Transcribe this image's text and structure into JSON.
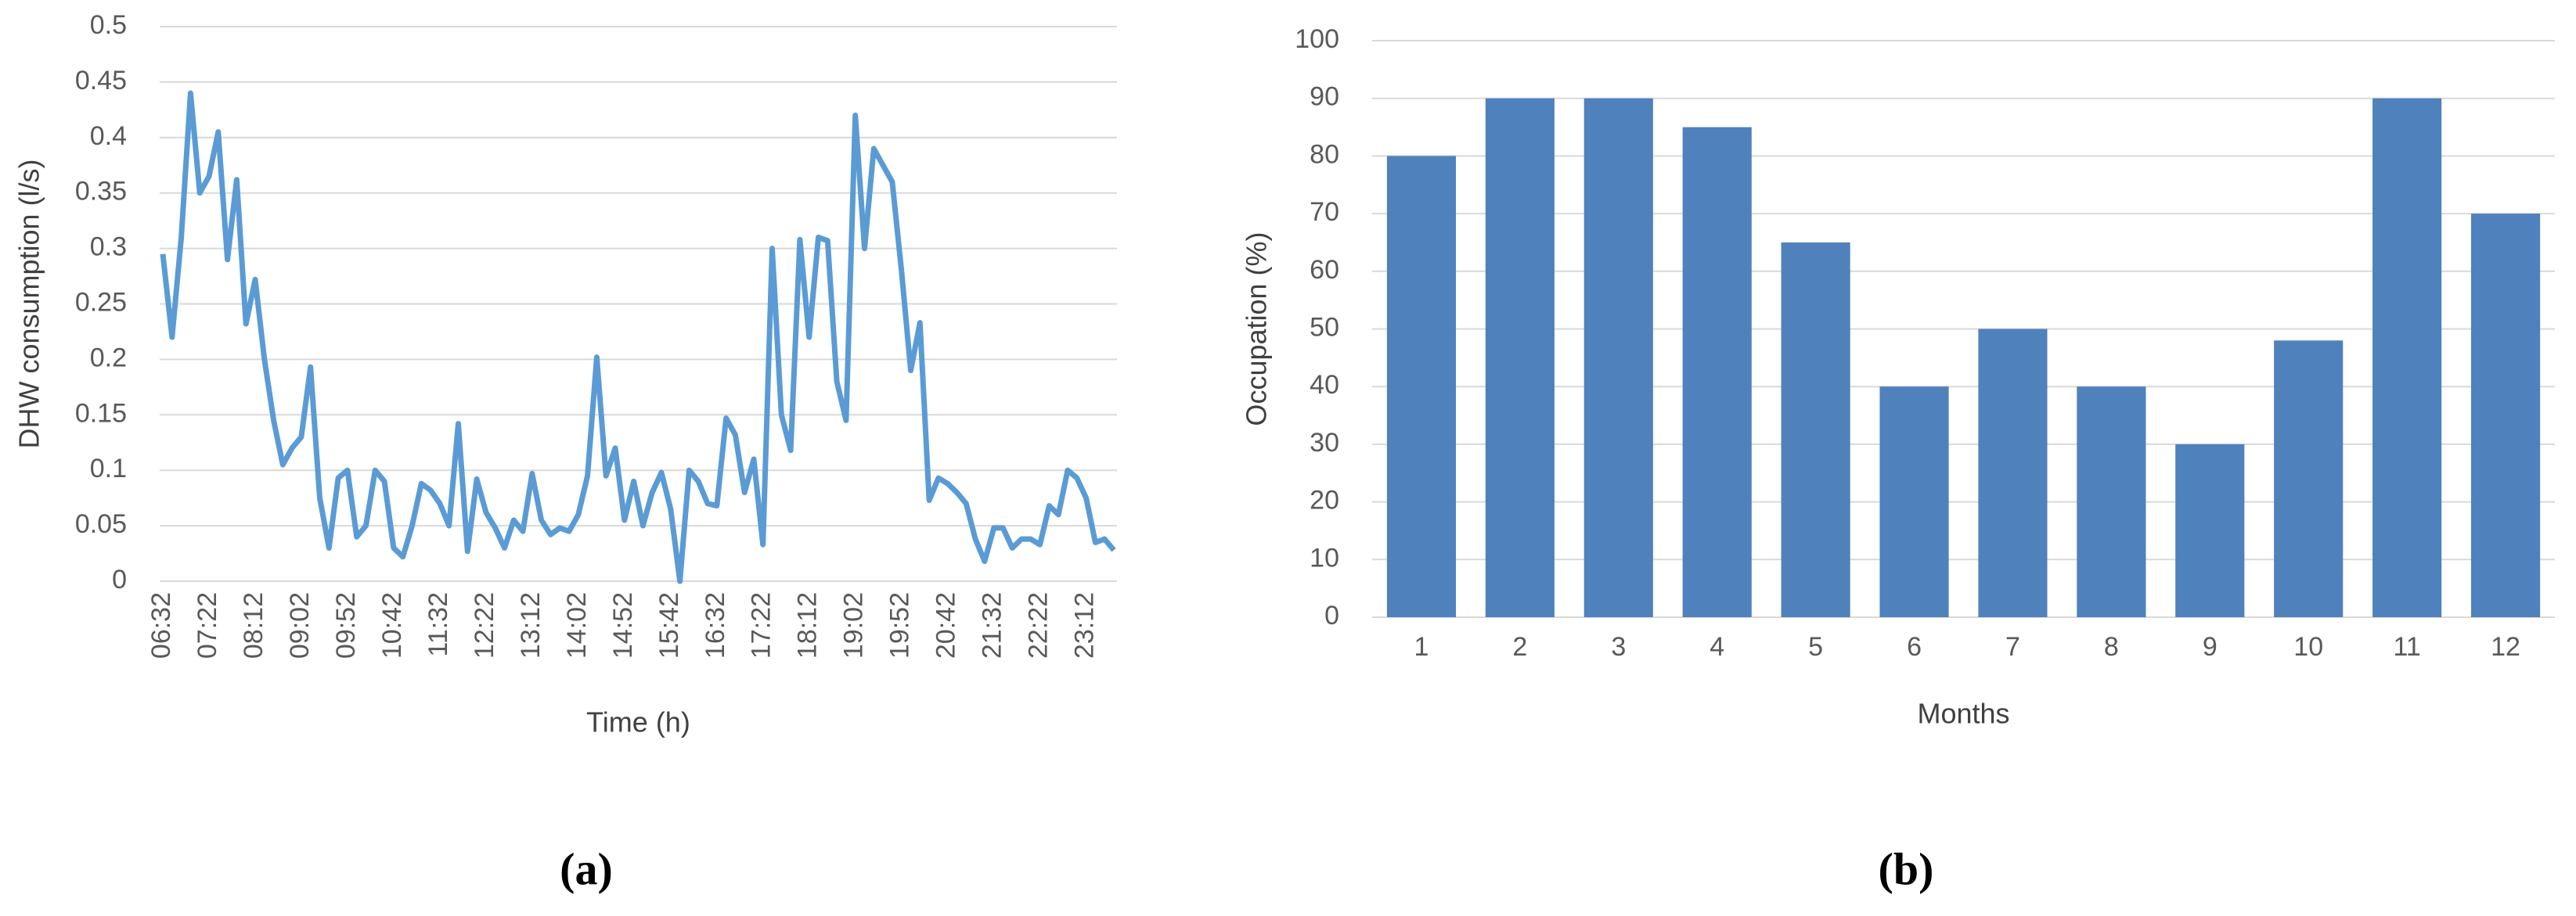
{
  "chart_data": [
    {
      "type": "line",
      "caption": "(a)",
      "xlabel": "Time (h)",
      "ylabel": "DHW consumption (l/s)",
      "categories": [
        "06:32",
        null,
        null,
        null,
        null,
        "07:22",
        null,
        null,
        null,
        null,
        "08:12",
        null,
        null,
        null,
        null,
        "09:02",
        null,
        null,
        null,
        null,
        "09:52",
        null,
        null,
        null,
        null,
        "10:42",
        null,
        null,
        null,
        null,
        "11:32",
        null,
        null,
        null,
        null,
        "12:22",
        null,
        null,
        null,
        null,
        "13:12",
        null,
        null,
        null,
        null,
        "14:02",
        null,
        null,
        null,
        null,
        "14:52",
        null,
        null,
        null,
        null,
        "15:42",
        null,
        null,
        null,
        null,
        "16:32",
        null,
        null,
        null,
        null,
        "17:22",
        null,
        null,
        null,
        null,
        "18:12",
        null,
        null,
        null,
        null,
        "19:02",
        null,
        null,
        null,
        null,
        "19:52",
        null,
        null,
        null,
        null,
        "20:42",
        null,
        null,
        null,
        null,
        "21:32",
        null,
        null,
        null,
        null,
        "22:22",
        null,
        null,
        null,
        null,
        "23:12",
        null,
        null,
        null
      ],
      "values": [
        0.295,
        0.22,
        0.31,
        0.44,
        0.35,
        0.365,
        0.405,
        0.29,
        0.362,
        0.232,
        0.272,
        0.2,
        0.145,
        0.105,
        0.12,
        0.13,
        0.193,
        0.075,
        0.03,
        0.093,
        0.1,
        0.04,
        0.05,
        0.1,
        0.09,
        0.03,
        0.022,
        0.05,
        0.088,
        0.082,
        0.07,
        0.05,
        0.142,
        0.027,
        0.092,
        0.062,
        0.048,
        0.03,
        0.055,
        0.045,
        0.097,
        0.055,
        0.042,
        0.048,
        0.045,
        0.06,
        0.095,
        0.202,
        0.095,
        0.12,
        0.055,
        0.09,
        0.05,
        0.08,
        0.098,
        0.065,
        0.0,
        0.1,
        0.09,
        0.07,
        0.068,
        0.147,
        0.132,
        0.08,
        0.11,
        0.033,
        0.3,
        0.15,
        0.118,
        0.308,
        0.22,
        0.31,
        0.307,
        0.18,
        0.145,
        0.42,
        0.3,
        0.39,
        0.375,
        0.36,
        0.28,
        0.19,
        0.233,
        0.073,
        0.093,
        0.088,
        0.08,
        0.07,
        0.038,
        0.018,
        0.048,
        0.048,
        0.03,
        0.038,
        0.038,
        0.033,
        0.068,
        0.06,
        0.1,
        0.093,
        0.075,
        0.035,
        0.038,
        0.028
      ],
      "color": "#5b9bd5",
      "ylim": [
        0,
        0.5
      ],
      "yticks": [
        0,
        0.05,
        0.1,
        0.15,
        0.2,
        0.25,
        0.3,
        0.35,
        0.4,
        0.45,
        0.5
      ],
      "grid": true
    },
    {
      "type": "bar",
      "caption": "(b)",
      "xlabel": "Months",
      "ylabel": "Occupation (%)",
      "categories": [
        "1",
        "2",
        "3",
        "4",
        "5",
        "6",
        "7",
        "8",
        "9",
        "10",
        "11",
        "12"
      ],
      "values": [
        80,
        90,
        90,
        85,
        65,
        40,
        50,
        40,
        30,
        48,
        90,
        70
      ],
      "color": "#4f81bd",
      "ylim": [
        0,
        100
      ],
      "yticks": [
        0,
        10,
        20,
        30,
        40,
        50,
        60,
        70,
        80,
        90,
        100
      ],
      "grid": true
    }
  ]
}
